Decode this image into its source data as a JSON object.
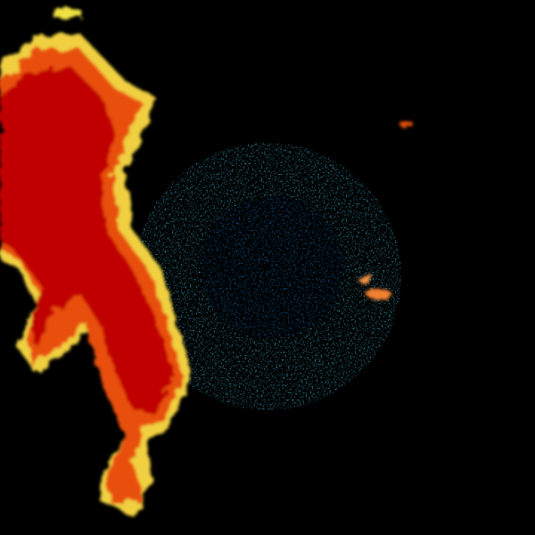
{
  "palette": {
    "background": "#000000",
    "heavy": "#c00000",
    "strong": "#e03000",
    "moderate": "#f08000",
    "light": "#f0e040",
    "weak": "#a0e080",
    "clutter_light": "#40c0e0",
    "clutter": "#1080d0"
  }
}
